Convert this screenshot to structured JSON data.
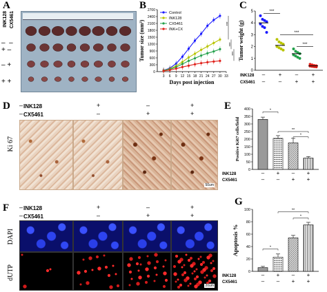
{
  "panels": {
    "A": {
      "letter": "A",
      "row_labels": [
        "INK128",
        "CX5461"
      ],
      "signs": [
        [
          "–",
          "–"
        ],
        [
          "+",
          "–"
        ],
        [
          "–",
          "+"
        ],
        [
          "+",
          "+"
        ]
      ],
      "tumor_counts": [
        8,
        8,
        8,
        8
      ]
    },
    "B": {
      "letter": "B"
    },
    "C": {
      "letter": "C"
    },
    "D": {
      "letter": "D",
      "row_labels": [
        "INK128",
        "CX5461"
      ],
      "signs": [
        [
          "–",
          "–"
        ],
        [
          "+",
          "–"
        ],
        [
          "–",
          "+"
        ],
        [
          "+",
          "+"
        ]
      ],
      "stain_label": "Ki 67",
      "scale": "50um"
    },
    "E": {
      "letter": "E"
    },
    "F": {
      "letter": "F",
      "row_labels": [
        "INK128",
        "CX5461"
      ],
      "signs": [
        [
          "–",
          "–"
        ],
        [
          "+",
          "–"
        ],
        [
          "–",
          "+"
        ],
        [
          "+",
          "+"
        ]
      ],
      "stain_top": "DAPI",
      "stain_bottom": "dUTP",
      "scale": "20um"
    },
    "G": {
      "letter": "G"
    }
  },
  "chart_data": [
    {
      "id": "B",
      "type": "line",
      "xlabel": "Days post injection",
      "ylabel": "Tumor size (mm³)",
      "xlim": [
        0,
        33
      ],
      "ylim": [
        0,
        2700
      ],
      "x": [
        3,
        6,
        9,
        12,
        15,
        18,
        21,
        24,
        27,
        30
      ],
      "xticks": [
        "3",
        "6",
        "9",
        "12",
        "15",
        "18",
        "21",
        "24",
        "27",
        "30",
        "33"
      ],
      "yticks": [
        "0",
        "300",
        "600",
        "900",
        "1200",
        "1500",
        "1800",
        "2100",
        "2400",
        "2700"
      ],
      "series": [
        {
          "name": "Control",
          "color": "#1a1aff",
          "values": [
            60,
            150,
            350,
            650,
            1000,
            1350,
            1650,
            2000,
            2250,
            2430
          ]
        },
        {
          "name": "INK128",
          "color": "#b8c400",
          "values": [
            50,
            120,
            250,
            420,
            620,
            780,
            950,
            1100,
            1250,
            1400
          ]
        },
        {
          "name": "CX5461",
          "color": "#22a04a",
          "values": [
            40,
            100,
            200,
            330,
            470,
            580,
            700,
            800,
            880,
            980
          ]
        },
        {
          "name": "INK+CX",
          "color": "#e0201a",
          "values": [
            30,
            70,
            130,
            200,
            260,
            320,
            370,
            410,
            440,
            470
          ]
        }
      ],
      "annotations": [
        "***",
        "***",
        "***"
      ]
    },
    {
      "id": "C",
      "type": "scatter",
      "ylabel": "Tumor weight (g)",
      "ylim": [
        0,
        5
      ],
      "yticks": [
        "0",
        "1",
        "2",
        "3",
        "4",
        "5"
      ],
      "group_labels": [
        "INK128",
        "CX5461"
      ],
      "signs": [
        [
          "–",
          "–"
        ],
        [
          "+",
          "–"
        ],
        [
          "–",
          "+"
        ],
        [
          "+",
          "+"
        ]
      ],
      "groups": [
        {
          "color": "#1a1aff",
          "values": [
            4.6,
            4.3,
            4.2,
            4.1,
            3.9,
            3.7,
            3.6,
            3.2
          ],
          "mean": 4.0
        },
        {
          "color": "#b8c400",
          "values": [
            2.6,
            2.4,
            2.3,
            2.2,
            2.0,
            1.9,
            1.8,
            1.7
          ],
          "mean": 2.1
        },
        {
          "color": "#22a04a",
          "values": [
            1.8,
            1.6,
            1.5,
            1.4,
            1.3,
            1.2,
            1.1,
            1.0
          ],
          "mean": 1.4
        },
        {
          "color": "#e0201a",
          "values": [
            0.5,
            0.45,
            0.4,
            0.38,
            0.35,
            0.32,
            0.3,
            0.28
          ],
          "mean": 0.37
        }
      ],
      "annotations": [
        "***",
        "***",
        "***"
      ]
    },
    {
      "id": "E",
      "type": "bar",
      "ylabel": "Positive Ki67 cells/field",
      "ylim": [
        0,
        400
      ],
      "yticks": [
        "0",
        "50",
        "100",
        "150",
        "200",
        "250",
        "300",
        "350",
        "400"
      ],
      "group_labels": [
        "INK128",
        "CX5461"
      ],
      "signs": [
        [
          "–",
          "–"
        ],
        [
          "+",
          "–"
        ],
        [
          "–",
          "+"
        ],
        [
          "+",
          "+"
        ]
      ],
      "values": [
        330,
        205,
        175,
        75
      ],
      "errors": [
        15,
        18,
        30,
        10
      ],
      "annotations": [
        "*",
        "**",
        "*"
      ]
    },
    {
      "id": "G",
      "type": "bar",
      "ylabel": "Apoptosis %",
      "ylim": [
        0,
        100
      ],
      "yticks": [
        "0",
        "20",
        "40",
        "60",
        "80",
        "100"
      ],
      "group_labels": [
        "INK128",
        "CX5461"
      ],
      "signs": [
        [
          "–",
          "–"
        ],
        [
          "+",
          "–"
        ],
        [
          "–",
          "+"
        ],
        [
          "+",
          "+"
        ]
      ],
      "values": [
        6,
        23,
        54,
        75
      ],
      "errors": [
        2,
        5,
        4,
        4
      ],
      "annotations": [
        "*",
        "**",
        "*"
      ]
    }
  ]
}
